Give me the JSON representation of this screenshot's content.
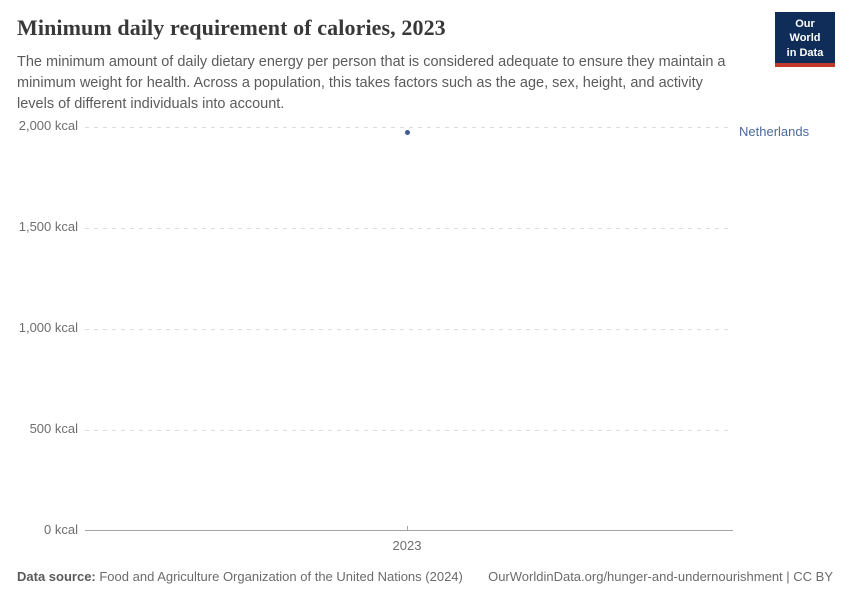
{
  "header": {
    "title": "Minimum daily requirement of calories, 2023",
    "subtitle": "The minimum amount of daily dietary energy per person that is considered adequate to ensure they maintain a minimum weight for health. Across a population, this takes factors such as the age, sex, height, and activity levels of different individuals into account.",
    "logo": {
      "line1": "Our World",
      "line2": "in Data"
    }
  },
  "chart_data": {
    "type": "scatter",
    "title": "Minimum daily requirement of calories, 2023",
    "x": [
      2023
    ],
    "series": [
      {
        "name": "Netherlands",
        "values": [
          1975
        ],
        "color": "#3e5c96",
        "label_color": "#4c6a9c"
      }
    ],
    "xlabel": "",
    "ylabel": "",
    "ylim": [
      0,
      2000
    ],
    "yticks": [
      0,
      500,
      1000,
      1500,
      2000
    ],
    "ytick_labels": [
      "0 kcal",
      "500 kcal",
      "1,000 kcal",
      "1,500 kcal",
      "2,000 kcal"
    ],
    "xticks": [
      2023
    ],
    "xtick_labels": [
      "2023"
    ],
    "grid": "horizontal-dashed",
    "legend_position": "right-of-point"
  },
  "footer": {
    "datasource_label": "Data source:",
    "datasource_value": " Food and Agriculture Organization of the United Nations (2024)",
    "link": "OurWorldinData.org/hunger-and-undernourishment | CC BY"
  },
  "colors": {
    "title": "#383838",
    "subtitle": "#5b5b5b",
    "tick_label": "#6e6e6e",
    "gridline": "#dcdcdc",
    "axis_line": "#a3a3a3",
    "logo_bg": "#102d59",
    "logo_accent": "#c2392b",
    "series_dot": "#3e5c96",
    "series_label": "#4c6a9c"
  }
}
